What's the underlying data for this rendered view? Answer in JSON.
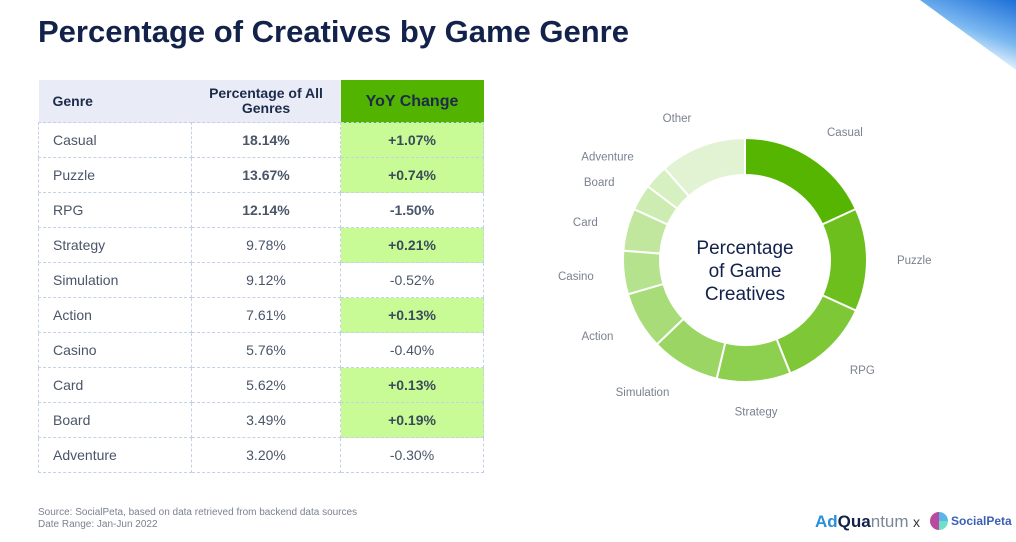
{
  "title": "Percentage of Creatives by Game Genre",
  "table": {
    "headers": [
      "Genre",
      "Percentage of All Genres",
      "YoY Change"
    ],
    "rows": [
      {
        "genre": "Casual",
        "pct": "18.14%",
        "yoy": "+1.07%",
        "hl": true,
        "bold": true
      },
      {
        "genre": "Puzzle",
        "pct": "13.67%",
        "yoy": "+0.74%",
        "hl": true,
        "bold": true
      },
      {
        "genre": "RPG",
        "pct": "12.14%",
        "yoy": "-1.50%",
        "hl": false,
        "bold": true
      },
      {
        "genre": "Strategy",
        "pct": "9.78%",
        "yoy": "+0.21%",
        "hl": true,
        "bold": false
      },
      {
        "genre": "Simulation",
        "pct": "9.12%",
        "yoy": "-0.52%",
        "hl": false,
        "bold": false
      },
      {
        "genre": "Action",
        "pct": "7.61%",
        "yoy": "+0.13%",
        "hl": true,
        "bold": false
      },
      {
        "genre": "Casino",
        "pct": "5.76%",
        "yoy": "-0.40%",
        "hl": false,
        "bold": false
      },
      {
        "genre": "Card",
        "pct": "5.62%",
        "yoy": "+0.13%",
        "hl": true,
        "bold": false
      },
      {
        "genre": "Board",
        "pct": "3.49%",
        "yoy": "+0.19%",
        "hl": true,
        "bold": false
      },
      {
        "genre": "Adventure",
        "pct": "3.20%",
        "yoy": "-0.30%",
        "hl": false,
        "bold": false
      }
    ]
  },
  "chart_data": {
    "type": "pie",
    "title": "Percentage of Game Creatives",
    "categories": [
      "Casual",
      "Puzzle",
      "RPG",
      "Strategy",
      "Simulation",
      "Action",
      "Casino",
      "Card",
      "Board",
      "Adventure",
      "Other"
    ],
    "values": [
      18.14,
      13.67,
      12.14,
      9.78,
      9.12,
      7.61,
      5.76,
      5.62,
      3.49,
      3.2,
      11.47
    ],
    "colors": [
      "#56b500",
      "#6cbf1c",
      "#7ec838",
      "#8dcf4f",
      "#9bd665",
      "#a8dc79",
      "#b5e28c",
      "#c1e79f",
      "#cdecb1",
      "#d7f0c2",
      "#e2f3d3"
    ]
  },
  "source": "Source: SocialPeta, based on data retrieved from backend data sources",
  "date_range": "Date Range: Jan-Jun 2022",
  "logos": {
    "ad": "Ad",
    "q": "Qua",
    "t": "ntum",
    "x": "x",
    "sp": "SocialPeta"
  }
}
